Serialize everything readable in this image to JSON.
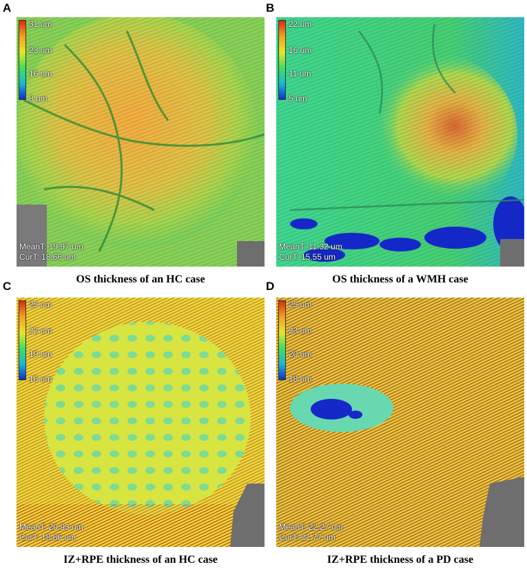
{
  "panels": [
    {
      "letter": "A",
      "legend_ticks": [
        "31 um",
        "23 um",
        "16 um",
        "8 um"
      ],
      "mean": "MeanT: 19.97 um",
      "cur": "CurT: 18.66 um",
      "caption": "OS thickness of an HC case",
      "legend_gradient": [
        "#dd2a10",
        "#f4a020",
        "#e7e52a",
        "#3fe05a",
        "#1ab8d8",
        "#1030c8"
      ],
      "base_color": "#8cdc50",
      "blob_color": "#f0b040"
    },
    {
      "letter": "B",
      "legend_ticks": [
        "22 um",
        "16 um",
        "11 um",
        "5 um"
      ],
      "mean": "MeanT: 11.32 um",
      "cur": "CurT: 15.55 um",
      "caption": "OS thickness of a WMH case",
      "legend_gradient": [
        "#dd2a10",
        "#f4a020",
        "#e7e52a",
        "#3fe05a",
        "#1ab8d8",
        "#1030c8"
      ],
      "base_color": "#3cd28c",
      "blob_color": "#f0a040"
    },
    {
      "letter": "C",
      "legend_ticks": [
        "25 um",
        "22 um",
        "19 um",
        "16 um"
      ],
      "mean": "MeanT: 20.93 um",
      "cur": "CurT: 18.66 um",
      "caption": "IZ+RPE thickness of an HC case",
      "legend_gradient": [
        "#dd2a10",
        "#f4a020",
        "#e7e52a",
        "#3fe05a",
        "#1ab8d8",
        "#1030c8"
      ],
      "base_color": "#dfe43a",
      "blob_color": "#78e0a0"
    },
    {
      "letter": "D",
      "legend_ticks": [
        "25 um",
        "23 um",
        "20 um",
        "18 um"
      ],
      "mean": "MeanT: 22.27 um",
      "cur": "CurT: 21.77 um",
      "caption": "IZ+RPE thickness of a PD case",
      "legend_gradient": [
        "#dd2a10",
        "#f4a020",
        "#e7e52a",
        "#3fe05a",
        "#1ab8d8",
        "#1030c8"
      ],
      "base_color": "#d8e040",
      "blob_color": "#d03018"
    }
  ]
}
